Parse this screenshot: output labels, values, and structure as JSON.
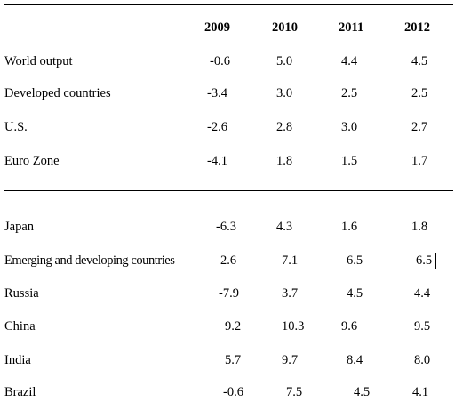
{
  "headers": [
    "2009",
    "2010",
    "2011",
    "2012"
  ],
  "rows": [
    {
      "label": "World output",
      "values": [
        "-0.6",
        "5.0",
        "4.4",
        "4.5"
      ]
    },
    {
      "label": "Developed countries",
      "values": [
        "-3.4",
        "3.0",
        "2.5",
        "2.5"
      ]
    },
    {
      "label": "U.S.",
      "values": [
        "-2.6",
        "2.8",
        "3.0",
        "2.7"
      ]
    },
    {
      "label": "Euro Zone",
      "values": [
        "-4.1",
        "1.8",
        "1.5",
        "1.7"
      ]
    },
    {
      "label": "Japan",
      "values": [
        "-6.3",
        "4.3",
        "1.6",
        "1.8"
      ]
    },
    {
      "label": "Emerging and developing countries",
      "values": [
        "2.6",
        "7.1",
        "6.5",
        "6.5"
      ]
    },
    {
      "label": "Russia",
      "values": [
        "-7.9",
        "3.7",
        "4.5",
        "4.4"
      ]
    },
    {
      "label": "China",
      "values": [
        "9.2",
        "10.3",
        "9.6",
        "9.5"
      ]
    },
    {
      "label": "India",
      "values": [
        "5.7",
        "9.7",
        "8.4",
        "8.0"
      ]
    },
    {
      "label": "Brazil",
      "values": [
        "-0.6",
        "7.5",
        "4.5",
        "4.1"
      ]
    }
  ]
}
